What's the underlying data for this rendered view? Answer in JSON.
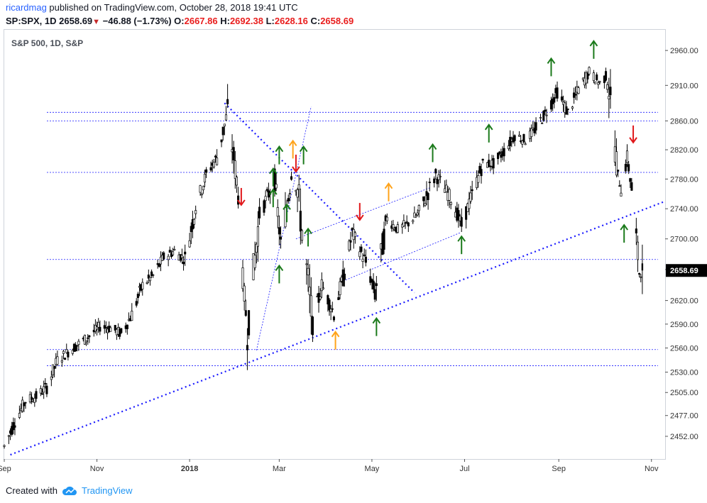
{
  "header": {
    "user": "ricardmag",
    "published": " published on TradingView.com, October 28, 2018 19:41 UTC",
    "symbol": "SP:SPX, 1D",
    "last": "2658.69",
    "change": "−46.88 (−1.73%)",
    "o_label": "O:",
    "o": "2667.86",
    "h_label": "H:",
    "h": "2692.38",
    "l_label": "L:",
    "l": "2628.16",
    "c_label": "C:",
    "c": "2658.69"
  },
  "pane_title": "S&P 500, 1D, S&P",
  "footer": {
    "created_with": "Created with",
    "brand": "TradingView"
  },
  "colors": {
    "green_arrow": "#1b7a1b",
    "red_arrow": "#e0181b",
    "orange_arrow": "#ffa31a",
    "trendline": "#1a1aff",
    "candle": "#000000"
  },
  "chart_data": {
    "type": "candlestick",
    "title": "S&P 500, 1D, S&P",
    "x_range": [
      "2017-09-01",
      "2018-11-10"
    ],
    "x_ticks": [
      "Sep",
      "Nov",
      "2018",
      "Mar",
      "May",
      "Jul",
      "Sep",
      "Nov"
    ],
    "y_scale": "log",
    "ylim": [
      2425,
      2990
    ],
    "y_ticks": [
      2960,
      2910,
      2860,
      2820,
      2780,
      2740,
      2700,
      2660,
      2620,
      2590,
      2560,
      2530,
      2505,
      2477,
      2452
    ],
    "y_ticks_labels": [
      "2960.00",
      "2910.00",
      "2860.00",
      "2820.00",
      "2780.00",
      "2740.00",
      "2700.00",
      "2660.00",
      "2620.00",
      "2590.00",
      "2560.00",
      "2530.00",
      "2505.00",
      "2477.00",
      "2452.00"
    ],
    "last_price_label": "2658.69",
    "price_path": [
      [
        "2017-09-01",
        2440
      ],
      [
        "2017-09-08",
        2470
      ],
      [
        "2017-09-15",
        2495
      ],
      [
        "2017-09-22",
        2500
      ],
      [
        "2017-09-29",
        2512
      ],
      [
        "2017-10-06",
        2545
      ],
      [
        "2017-10-13",
        2555
      ],
      [
        "2017-10-20",
        2565
      ],
      [
        "2017-10-27",
        2575
      ],
      [
        "2017-11-03",
        2587
      ],
      [
        "2017-11-10",
        2585
      ],
      [
        "2017-11-17",
        2578
      ],
      [
        "2017-11-24",
        2602
      ],
      [
        "2017-12-01",
        2640
      ],
      [
        "2017-12-08",
        2652
      ],
      [
        "2017-12-15",
        2676
      ],
      [
        "2017-12-22",
        2684
      ],
      [
        "2017-12-29",
        2673
      ],
      [
        "2018-01-05",
        2743
      ],
      [
        "2018-01-12",
        2786
      ],
      [
        "2018-01-19",
        2810
      ],
      [
        "2018-01-26",
        2872
      ],
      [
        "2018-02-02",
        2762
      ],
      [
        "2018-02-05",
        2649
      ],
      [
        "2018-02-08",
        2581
      ],
      [
        "2018-02-16",
        2732
      ],
      [
        "2018-02-26",
        2779
      ],
      [
        "2018-03-02",
        2691
      ],
      [
        "2018-03-09",
        2786
      ],
      [
        "2018-03-13",
        2765
      ],
      [
        "2018-03-23",
        2588
      ],
      [
        "2018-03-29",
        2640
      ],
      [
        "2018-04-06",
        2604
      ],
      [
        "2018-04-13",
        2656
      ],
      [
        "2018-04-18",
        2708
      ],
      [
        "2018-04-27",
        2669
      ],
      [
        "2018-05-03",
        2630
      ],
      [
        "2018-05-11",
        2727
      ],
      [
        "2018-05-18",
        2712
      ],
      [
        "2018-05-25",
        2721
      ],
      [
        "2018-06-01",
        2734
      ],
      [
        "2018-06-12",
        2786
      ],
      [
        "2018-06-22",
        2754
      ],
      [
        "2018-06-29",
        2718
      ],
      [
        "2018-07-06",
        2759
      ],
      [
        "2018-07-13",
        2801
      ],
      [
        "2018-07-20",
        2801
      ],
      [
        "2018-07-27",
        2818
      ],
      [
        "2018-08-03",
        2840
      ],
      [
        "2018-08-10",
        2833
      ],
      [
        "2018-08-17",
        2850
      ],
      [
        "2018-08-24",
        2874
      ],
      [
        "2018-08-31",
        2901
      ],
      [
        "2018-09-07",
        2871
      ],
      [
        "2018-09-14",
        2904
      ],
      [
        "2018-09-21",
        2929
      ],
      [
        "2018-09-28",
        2913
      ],
      [
        "2018-10-03",
        2925
      ],
      [
        "2018-10-10",
        2785
      ],
      [
        "2018-10-12",
        2767
      ],
      [
        "2018-10-16",
        2809
      ],
      [
        "2018-10-19",
        2767
      ],
      [
        "2018-10-24",
        2656
      ],
      [
        "2018-10-26",
        2658.69
      ]
    ],
    "horizontal_levels": [
      2872,
      2860,
      2789,
      2673,
      2558,
      2538
    ],
    "trendlines": [
      {
        "from": [
          "2017-09-05",
          2430
        ],
        "to": [
          "2018-11-10",
          2750
        ]
      },
      {
        "from": [
          "2018-01-24",
          2885
        ],
        "to": [
          "2018-05-29",
          2630
        ]
      },
      {
        "from": [
          "2018-02-14",
          2557
        ],
        "to": [
          "2018-03-22",
          2880
        ]
      },
      {
        "from": [
          "2018-03-12",
          2700
        ],
        "to": [
          "2018-06-08",
          2768
        ]
      },
      {
        "from": [
          "2018-04-12",
          2645
        ],
        "to": [
          "2018-06-28",
          2708
        ]
      }
    ],
    "arrows": [
      {
        "date": "2018-02-04",
        "price": 2745,
        "dir": "down",
        "color": "red"
      },
      {
        "date": "2018-02-25",
        "price": 2770,
        "dir": "up",
        "color": "green"
      },
      {
        "date": "2018-02-25",
        "price": 2742,
        "dir": "up",
        "color": "green"
      },
      {
        "date": "2018-03-01",
        "price": 2800,
        "dir": "up",
        "color": "green"
      },
      {
        "date": "2018-03-01",
        "price": 2642,
        "dir": "up",
        "color": "green"
      },
      {
        "date": "2018-03-06",
        "price": 2722,
        "dir": "up",
        "color": "green"
      },
      {
        "date": "2018-03-10",
        "price": 2808,
        "dir": "up",
        "color": "orange"
      },
      {
        "date": "2018-03-12",
        "price": 2790,
        "dir": "down",
        "color": "red"
      },
      {
        "date": "2018-03-17",
        "price": 2800,
        "dir": "up",
        "color": "green"
      },
      {
        "date": "2018-03-20",
        "price": 2690,
        "dir": "up",
        "color": "green"
      },
      {
        "date": "2018-04-07",
        "price": 2558,
        "dir": "up",
        "color": "orange"
      },
      {
        "date": "2018-04-23",
        "price": 2725,
        "dir": "down",
        "color": "red"
      },
      {
        "date": "2018-05-04",
        "price": 2575,
        "dir": "up",
        "color": "green"
      },
      {
        "date": "2018-05-12",
        "price": 2750,
        "dir": "up",
        "color": "orange"
      },
      {
        "date": "2018-06-10",
        "price": 2803,
        "dir": "up",
        "color": "green"
      },
      {
        "date": "2018-06-29",
        "price": 2680,
        "dir": "up",
        "color": "green"
      },
      {
        "date": "2018-07-17",
        "price": 2830,
        "dir": "up",
        "color": "green"
      },
      {
        "date": "2018-08-27",
        "price": 2923,
        "dir": "up",
        "color": "green"
      },
      {
        "date": "2018-09-24",
        "price": 2948,
        "dir": "up",
        "color": "green"
      },
      {
        "date": "2018-10-20",
        "price": 2830,
        "dir": "down",
        "color": "red"
      },
      {
        "date": "2018-10-14",
        "price": 2695,
        "dir": "up",
        "color": "green"
      }
    ]
  }
}
